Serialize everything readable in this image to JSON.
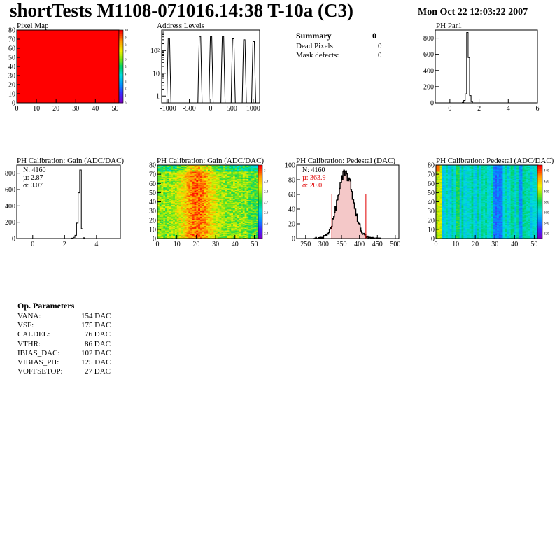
{
  "header": {
    "title": "shortTests M1108-071016.14:38 T-10a (C3)",
    "timestamp": "Mon Oct 22 12:03:22 2007"
  },
  "summary": {
    "title": "Summary",
    "title_value": "0",
    "rows": [
      {
        "label": "Dead Pixels:",
        "value": "0"
      },
      {
        "label": "Mask defects:",
        "value": "0"
      }
    ]
  },
  "op_params": {
    "title": "Op. Parameters",
    "rows": [
      {
        "label": "VANA:",
        "value": "154 DAC"
      },
      {
        "label": "VSF:",
        "value": "175 DAC"
      },
      {
        "label": "CALDEL:",
        "value": "76 DAC"
      },
      {
        "label": "VTHR:",
        "value": "86 DAC"
      },
      {
        "label": "IBIAS_DAC:",
        "value": "102 DAC"
      },
      {
        "label": "VIBIAS_PH:",
        "value": "125 DAC"
      },
      {
        "label": "VOFFSETOP:",
        "value": "27 DAC"
      }
    ]
  },
  "chart_data": [
    {
      "id": "pixel-map",
      "type": "heatmap",
      "title": "Pixel Map",
      "xlim": [
        0,
        52
      ],
      "ylim": [
        0,
        80
      ],
      "xticks": [
        "0",
        "10",
        "20",
        "30",
        "40",
        "50"
      ],
      "yticks": [
        "0",
        "10",
        "20",
        "30",
        "40",
        "50",
        "60",
        "70",
        "80"
      ],
      "uniform_value": 10,
      "colorscale": {
        "min": 0,
        "max": 10,
        "labels": [
          "0",
          "1",
          "2",
          "3",
          "4",
          "5",
          "6",
          "7",
          "8",
          "9",
          "10"
        ]
      },
      "fill_color": "#ff0000"
    },
    {
      "id": "address-levels",
      "type": "bar",
      "title": "Address Levels",
      "xlim": [
        -1150,
        1150
      ],
      "xticks": [
        "-1000",
        "-500",
        "0",
        "500",
        "1000"
      ],
      "y_scale": "log",
      "ylim": [
        0.5,
        800
      ],
      "yticks": [
        "1",
        "10",
        "10²"
      ],
      "peaks": [
        {
          "x": -980,
          "height": 350
        },
        {
          "x": -250,
          "height": 420
        },
        {
          "x": 10,
          "height": 420
        },
        {
          "x": 290,
          "height": 420
        },
        {
          "x": 530,
          "height": 330
        },
        {
          "x": 790,
          "height": 300
        },
        {
          "x": 1010,
          "height": 250
        }
      ]
    },
    {
      "id": "ph-par1",
      "type": "bar",
      "title": "PH Par1",
      "xlim": [
        -1,
        6
      ],
      "xticks": [
        "0",
        "2",
        "4",
        "6"
      ],
      "ylim": [
        0,
        900
      ],
      "yticks": [
        "0",
        "200",
        "400",
        "600",
        "800"
      ],
      "bins": [
        {
          "x": 0.9,
          "y": 5
        },
        {
          "x": 1.0,
          "y": 30
        },
        {
          "x": 1.1,
          "y": 110
        },
        {
          "x": 1.2,
          "y": 870
        },
        {
          "x": 1.3,
          "y": 560
        },
        {
          "x": 1.4,
          "y": 90
        },
        {
          "x": 1.5,
          "y": 15
        }
      ]
    },
    {
      "id": "gain-hist",
      "type": "bar",
      "title": "PH Calibration: Gain (ADC/DAC)",
      "xlim": [
        -1,
        5.5
      ],
      "xticks": [
        "0",
        "2",
        "4"
      ],
      "ylim": [
        0,
        900
      ],
      "yticks": [
        "0",
        "200",
        "400",
        "600",
        "800"
      ],
      "stats": {
        "N": "N: 4160",
        "mean": "µ: 2.87",
        "sigma": "σ: 0.07"
      },
      "bins": [
        {
          "x": 2.5,
          "y": 5
        },
        {
          "x": 2.6,
          "y": 15
        },
        {
          "x": 2.7,
          "y": 40
        },
        {
          "x": 2.8,
          "y": 190
        },
        {
          "x": 2.9,
          "y": 560
        },
        {
          "x": 3.0,
          "y": 840
        },
        {
          "x": 3.1,
          "y": 120
        },
        {
          "x": 3.2,
          "y": 10
        }
      ]
    },
    {
      "id": "gain-map",
      "type": "heatmap",
      "title": "PH Calibration: Gain (ADC/DAC)",
      "xlim": [
        0,
        52
      ],
      "ylim": [
        0,
        80
      ],
      "xticks": [
        "0",
        "10",
        "20",
        "30",
        "40",
        "50"
      ],
      "yticks": [
        "0",
        "10",
        "20",
        "30",
        "40",
        "50",
        "60",
        "70",
        "80"
      ],
      "colorscale": {
        "min": 2.35,
        "max": 3.05,
        "labels": [
          "2.4",
          "2.5",
          "2.6",
          "2.7",
          "2.8",
          "2.9",
          "3"
        ]
      }
    },
    {
      "id": "pedestal-hist",
      "type": "bar",
      "title": "PH Calibration: Pedestal (DAC)",
      "xlim": [
        225,
        510
      ],
      "xticks": [
        "250",
        "300",
        "350",
        "400",
        "450",
        "500"
      ],
      "ylim": [
        0,
        100
      ],
      "yticks": [
        "0",
        "20",
        "40",
        "60",
        "80",
        "100"
      ],
      "stats": {
        "N": "N: 4160",
        "mean": "µ: 363.9",
        "sigma": "σ: 20.0"
      },
      "cut_lines": [
        323,
        418
      ],
      "gauss": {
        "mean": 360,
        "sigma": 22,
        "peak": 88
      }
    },
    {
      "id": "pedestal-map",
      "type": "heatmap",
      "title": "PH Calibration: Pedestal (ADC/DAC)",
      "xlim": [
        0,
        52
      ],
      "ylim": [
        0,
        80
      ],
      "xticks": [
        "0",
        "10",
        "20",
        "30",
        "40",
        "50"
      ],
      "yticks": [
        "0",
        "10",
        "20",
        "30",
        "40",
        "50",
        "60",
        "70",
        "80"
      ],
      "colorscale": {
        "min": 310,
        "max": 450,
        "labels": [
          "320",
          "340",
          "360",
          "380",
          "400",
          "420",
          "440"
        ]
      }
    }
  ]
}
